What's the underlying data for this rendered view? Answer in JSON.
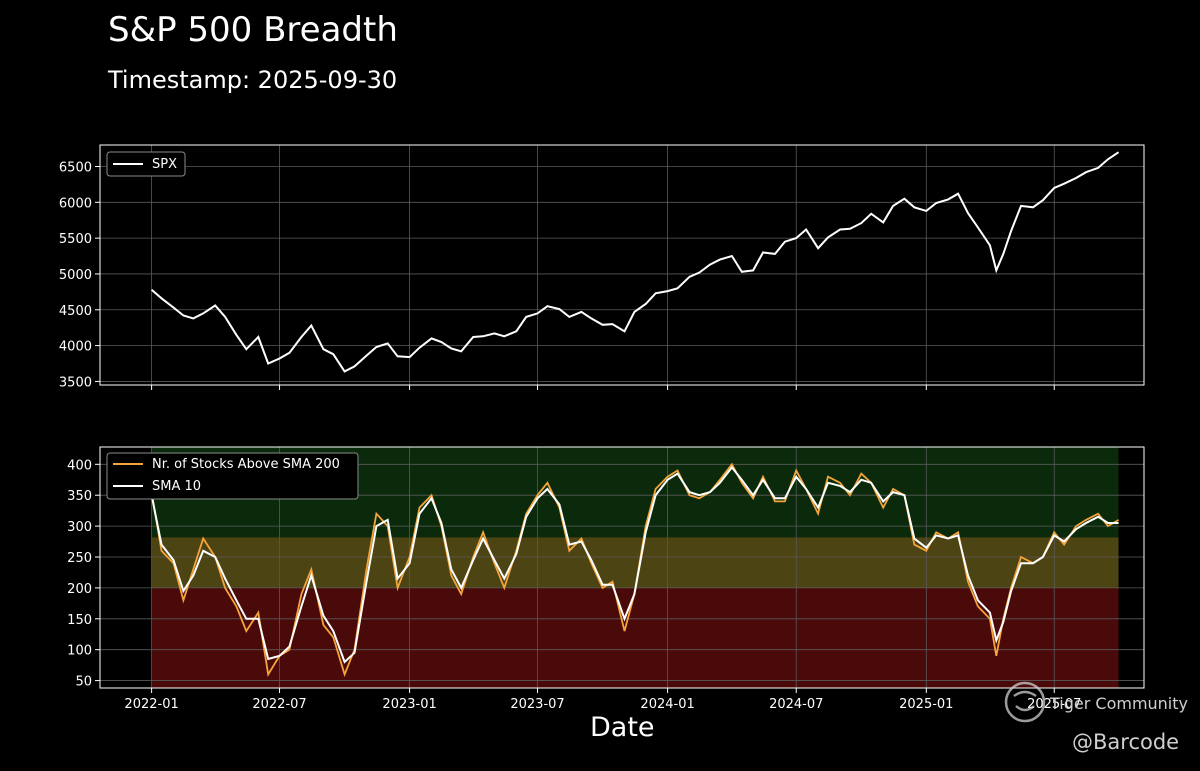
{
  "title": "S&P 500 Breadth",
  "subtitle": "Timestamp: 2025-09-30",
  "xlabel": "Date",
  "watermark": {
    "community": "Tiger Community",
    "handle": "@Barcode"
  },
  "colors": {
    "spx": "#ffffff",
    "breadth": "#f4a43a",
    "sma": "#ffffff",
    "zone_high": "#0b2a0b",
    "zone_mid": "#4d4413",
    "zone_low": "#4a0a0a"
  },
  "chart_data": [
    {
      "type": "line",
      "title": "",
      "xlabel": "",
      "ylabel": "",
      "ylim": [
        3450,
        6800
      ],
      "yticks": [
        3500,
        4000,
        4500,
        5000,
        5500,
        6000,
        6500
      ],
      "xlim": [
        "2021-10-20",
        "2025-11-05"
      ],
      "grid": true,
      "legend": "top-left",
      "series": [
        {
          "name": "SPX",
          "x": [
            "2022-01-01",
            "2022-01-15",
            "2022-02-01",
            "2022-02-15",
            "2022-03-01",
            "2022-03-15",
            "2022-04-01",
            "2022-04-15",
            "2022-05-01",
            "2022-05-15",
            "2022-06-01",
            "2022-06-15",
            "2022-07-01",
            "2022-07-15",
            "2022-08-01",
            "2022-08-15",
            "2022-09-01",
            "2022-09-15",
            "2022-10-01",
            "2022-10-15",
            "2022-11-01",
            "2022-11-15",
            "2022-12-01",
            "2022-12-15",
            "2023-01-01",
            "2023-01-15",
            "2023-02-01",
            "2023-02-15",
            "2023-03-01",
            "2023-03-15",
            "2023-04-01",
            "2023-04-15",
            "2023-05-01",
            "2023-05-15",
            "2023-06-01",
            "2023-06-15",
            "2023-07-01",
            "2023-07-15",
            "2023-08-01",
            "2023-08-15",
            "2023-09-01",
            "2023-09-15",
            "2023-10-01",
            "2023-10-15",
            "2023-11-01",
            "2023-11-15",
            "2023-12-01",
            "2023-12-15",
            "2024-01-01",
            "2024-01-15",
            "2024-02-01",
            "2024-02-15",
            "2024-03-01",
            "2024-03-15",
            "2024-04-01",
            "2024-04-15",
            "2024-05-01",
            "2024-05-15",
            "2024-06-01",
            "2024-06-15",
            "2024-07-01",
            "2024-07-15",
            "2024-08-01",
            "2024-08-15",
            "2024-09-01",
            "2024-09-15",
            "2024-10-01",
            "2024-10-15",
            "2024-11-01",
            "2024-11-15",
            "2024-12-01",
            "2024-12-15",
            "2025-01-01",
            "2025-01-15",
            "2025-02-01",
            "2025-02-15",
            "2025-03-01",
            "2025-03-15",
            "2025-04-01",
            "2025-04-10",
            "2025-04-20",
            "2025-05-01",
            "2025-05-15",
            "2025-06-01",
            "2025-06-15",
            "2025-07-01",
            "2025-07-15",
            "2025-08-01",
            "2025-08-15",
            "2025-09-01",
            "2025-09-15",
            "2025-09-30"
          ],
          "values": [
            4780,
            4660,
            4530,
            4420,
            4380,
            4450,
            4560,
            4400,
            4150,
            3950,
            4120,
            3750,
            3820,
            3900,
            4120,
            4280,
            3950,
            3880,
            3640,
            3710,
            3860,
            3980,
            4030,
            3850,
            3840,
            3970,
            4100,
            4050,
            3960,
            3920,
            4120,
            4130,
            4170,
            4130,
            4200,
            4400,
            4450,
            4550,
            4510,
            4400,
            4470,
            4380,
            4290,
            4300,
            4200,
            4470,
            4580,
            4730,
            4760,
            4800,
            4960,
            5020,
            5130,
            5200,
            5250,
            5030,
            5050,
            5300,
            5280,
            5450,
            5500,
            5620,
            5360,
            5510,
            5620,
            5630,
            5710,
            5840,
            5720,
            5950,
            6050,
            5930,
            5880,
            5990,
            6040,
            6120,
            5850,
            5650,
            5400,
            5050,
            5280,
            5600,
            5950,
            5930,
            6030,
            6200,
            6260,
            6340,
            6420,
            6480,
            6600,
            6700
          ]
        }
      ]
    },
    {
      "type": "line",
      "title": "",
      "xlabel": "Date",
      "ylabel": "",
      "ylim": [
        38,
        428
      ],
      "yticks": [
        50,
        100,
        150,
        200,
        250,
        300,
        350,
        400
      ],
      "xlim": [
        "2021-10-20",
        "2025-11-05"
      ],
      "xticks": [
        "2022-01",
        "2022-07",
        "2023-01",
        "2023-07",
        "2024-01",
        "2024-07",
        "2025-01",
        "2025-07"
      ],
      "grid": true,
      "legend": "top-left",
      "zones": [
        {
          "from": 0,
          "to": 200
        },
        {
          "from": 200,
          "to": 282
        },
        {
          "from": 282,
          "to": 428
        }
      ],
      "series": [
        {
          "name": "Nr. of Stocks Above SMA 200",
          "x": [
            "2022-01-01",
            "2022-01-15",
            "2022-02-01",
            "2022-02-15",
            "2022-03-01",
            "2022-03-15",
            "2022-04-01",
            "2022-04-15",
            "2022-05-01",
            "2022-05-15",
            "2022-06-01",
            "2022-06-15",
            "2022-07-01",
            "2022-07-15",
            "2022-08-01",
            "2022-08-15",
            "2022-09-01",
            "2022-09-15",
            "2022-10-01",
            "2022-10-15",
            "2022-11-01",
            "2022-11-15",
            "2022-12-01",
            "2022-12-15",
            "2023-01-01",
            "2023-01-15",
            "2023-02-01",
            "2023-02-15",
            "2023-03-01",
            "2023-03-15",
            "2023-04-01",
            "2023-04-15",
            "2023-05-01",
            "2023-05-15",
            "2023-06-01",
            "2023-06-15",
            "2023-07-01",
            "2023-07-15",
            "2023-08-01",
            "2023-08-15",
            "2023-09-01",
            "2023-09-15",
            "2023-10-01",
            "2023-10-15",
            "2023-11-01",
            "2023-11-15",
            "2023-12-01",
            "2023-12-15",
            "2024-01-01",
            "2024-01-15",
            "2024-02-01",
            "2024-02-15",
            "2024-03-01",
            "2024-03-15",
            "2024-04-01",
            "2024-04-15",
            "2024-05-01",
            "2024-05-15",
            "2024-06-01",
            "2024-06-15",
            "2024-07-01",
            "2024-07-15",
            "2024-08-01",
            "2024-08-15",
            "2024-09-01",
            "2024-09-15",
            "2024-10-01",
            "2024-10-15",
            "2024-11-01",
            "2024-11-15",
            "2024-12-01",
            "2024-12-15",
            "2025-01-01",
            "2025-01-15",
            "2025-02-01",
            "2025-02-15",
            "2025-03-01",
            "2025-03-15",
            "2025-04-01",
            "2025-04-10",
            "2025-04-20",
            "2025-05-01",
            "2025-05-15",
            "2025-06-01",
            "2025-06-15",
            "2025-07-01",
            "2025-07-15",
            "2025-08-01",
            "2025-08-15",
            "2025-09-01",
            "2025-09-15",
            "2025-09-30"
          ],
          "values": [
            355,
            260,
            240,
            180,
            230,
            280,
            250,
            200,
            170,
            130,
            160,
            60,
            90,
            100,
            190,
            230,
            140,
            120,
            60,
            100,
            230,
            320,
            300,
            200,
            250,
            330,
            350,
            300,
            220,
            190,
            250,
            290,
            240,
            200,
            260,
            320,
            350,
            370,
            330,
            260,
            280,
            240,
            200,
            210,
            130,
            190,
            300,
            360,
            380,
            390,
            350,
            345,
            355,
            375,
            400,
            370,
            345,
            380,
            340,
            340,
            390,
            360,
            320,
            380,
            370,
            350,
            385,
            370,
            330,
            360,
            350,
            270,
            260,
            290,
            280,
            290,
            210,
            170,
            150,
            90,
            150,
            200,
            250,
            240,
            250,
            290,
            270,
            300,
            310,
            320,
            300,
            310
          ]
        },
        {
          "name": "SMA 10",
          "x": [
            "2022-01-01",
            "2022-01-15",
            "2022-02-01",
            "2022-02-15",
            "2022-03-01",
            "2022-03-15",
            "2022-04-01",
            "2022-04-15",
            "2022-05-01",
            "2022-05-15",
            "2022-06-01",
            "2022-06-15",
            "2022-07-01",
            "2022-07-15",
            "2022-08-01",
            "2022-08-15",
            "2022-09-01",
            "2022-09-15",
            "2022-10-01",
            "2022-10-15",
            "2022-11-01",
            "2022-11-15",
            "2022-12-01",
            "2022-12-15",
            "2023-01-01",
            "2023-01-15",
            "2023-02-01",
            "2023-02-15",
            "2023-03-01",
            "2023-03-15",
            "2023-04-01",
            "2023-04-15",
            "2023-05-01",
            "2023-05-15",
            "2023-06-01",
            "2023-06-15",
            "2023-07-01",
            "2023-07-15",
            "2023-08-01",
            "2023-08-15",
            "2023-09-01",
            "2023-09-15",
            "2023-10-01",
            "2023-10-15",
            "2023-11-01",
            "2023-11-15",
            "2023-12-01",
            "2023-12-15",
            "2024-01-01",
            "2024-01-15",
            "2024-02-01",
            "2024-02-15",
            "2024-03-01",
            "2024-03-15",
            "2024-04-01",
            "2024-04-15",
            "2024-05-01",
            "2024-05-15",
            "2024-06-01",
            "2024-06-15",
            "2024-07-01",
            "2024-07-15",
            "2024-08-01",
            "2024-08-15",
            "2024-09-01",
            "2024-09-15",
            "2024-10-01",
            "2024-10-15",
            "2024-11-01",
            "2024-11-15",
            "2024-12-01",
            "2024-12-15",
            "2025-01-01",
            "2025-01-15",
            "2025-02-01",
            "2025-02-15",
            "2025-03-01",
            "2025-03-15",
            "2025-04-01",
            "2025-04-10",
            "2025-04-20",
            "2025-05-01",
            "2025-05-15",
            "2025-06-01",
            "2025-06-15",
            "2025-07-01",
            "2025-07-15",
            "2025-08-01",
            "2025-08-15",
            "2025-09-01",
            "2025-09-15",
            "2025-09-30"
          ],
          "values": [
            350,
            270,
            245,
            195,
            220,
            260,
            250,
            215,
            180,
            150,
            150,
            85,
            90,
            105,
            170,
            220,
            155,
            130,
            80,
            95,
            210,
            300,
            310,
            215,
            240,
            320,
            345,
            305,
            230,
            200,
            245,
            280,
            245,
            215,
            255,
            315,
            345,
            360,
            335,
            270,
            275,
            245,
            205,
            205,
            150,
            190,
            290,
            350,
            375,
            385,
            355,
            350,
            355,
            370,
            395,
            375,
            350,
            375,
            345,
            345,
            380,
            360,
            330,
            370,
            365,
            355,
            375,
            370,
            340,
            355,
            350,
            280,
            265,
            285,
            280,
            285,
            220,
            180,
            160,
            115,
            145,
            195,
            240,
            240,
            250,
            285,
            275,
            295,
            305,
            315,
            305,
            305
          ]
        }
      ]
    }
  ]
}
